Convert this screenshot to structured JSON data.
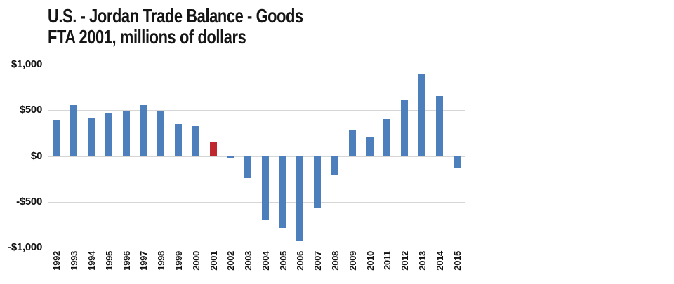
{
  "title": {
    "line1": "U.S. - Jordan Trade Balance - Goods",
    "line2": "FTA 2001, millions of dollars"
  },
  "chart_data": {
    "type": "bar",
    "title": "U.S. - Jordan Trade Balance - Goods FTA 2001, millions of dollars",
    "xlabel": "",
    "ylabel": "",
    "categories": [
      "1992",
      "1993",
      "1994",
      "1995",
      "1996",
      "1997",
      "1998",
      "1999",
      "2000",
      "2001",
      "2002",
      "2003",
      "2004",
      "2005",
      "2006",
      "2007",
      "2008",
      "2009",
      "2010",
      "2011",
      "2012",
      "2013",
      "2014",
      "2015"
    ],
    "values": [
      395,
      555,
      415,
      470,
      490,
      555,
      490,
      350,
      335,
      150,
      -25,
      -240,
      -700,
      -780,
      -930,
      -560,
      -210,
      290,
      205,
      400,
      620,
      900,
      655,
      -130
    ],
    "ylim": [
      -1000,
      1000
    ],
    "ytick_values": [
      1000,
      500,
      0,
      -500,
      -1000
    ],
    "ytick_labels": [
      "$1,000",
      "$500",
      "$0",
      "-$500",
      "-$1,000"
    ],
    "grid": true,
    "legend_position": "none",
    "bar_color": "#4C7FBC",
    "highlight_color": "#C0262D",
    "highlight_category": "2001",
    "gridline_color": "#D6D6D6"
  }
}
